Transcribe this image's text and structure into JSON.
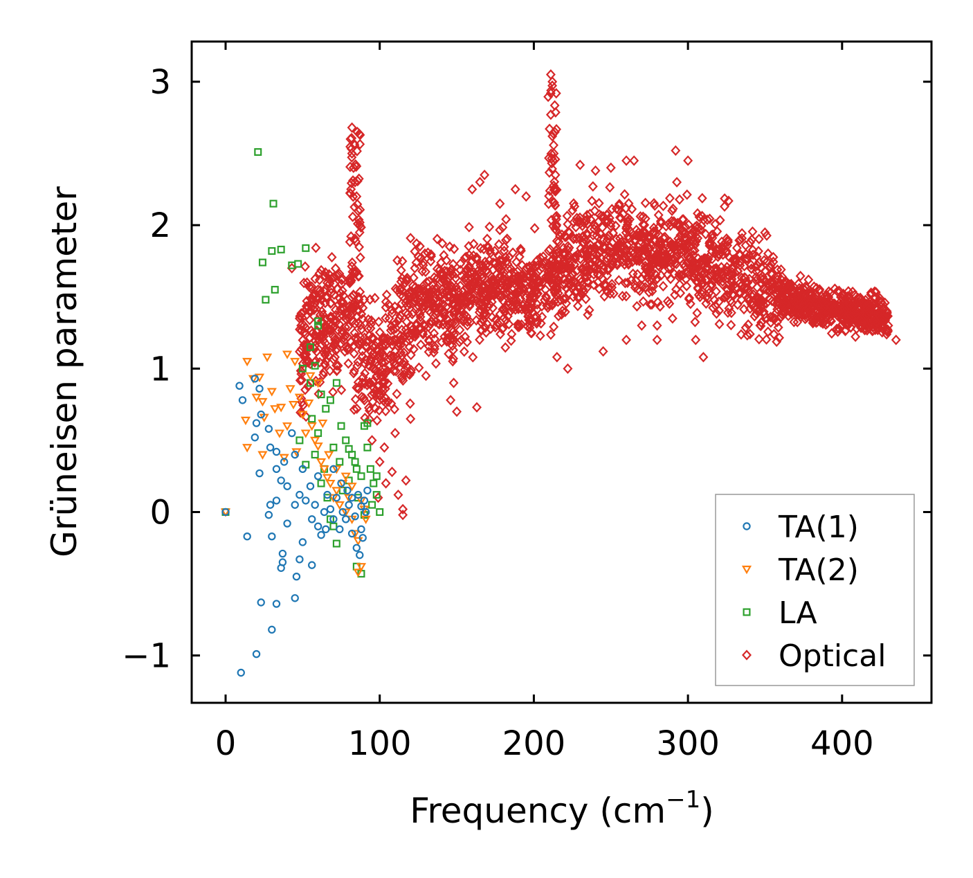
{
  "chart_data": {
    "type": "scatter",
    "title": "",
    "xlabel": "Frequency (cm",
    "xlabel_sup": "−1",
    "xlabel_end": ")",
    "ylabel": "Grüneisen parameter",
    "xlim": [
      -22,
      458
    ],
    "ylim": [
      -1.33,
      3.28
    ],
    "xticks": [
      0,
      100,
      200,
      300,
      400
    ],
    "yticks": [
      -1,
      0,
      1,
      2,
      3
    ],
    "xtick_labels": [
      "0",
      "100",
      "200",
      "300",
      "400"
    ],
    "ytick_labels": [
      "−1",
      "0",
      "1",
      "2",
      "3"
    ],
    "grid": false,
    "legend_position": "lower-right",
    "series": [
      {
        "name": "TA(1)",
        "marker": "circle",
        "color": "#1f77b4",
        "points": [
          [
            0,
            0
          ],
          [
            10,
            -1.12
          ],
          [
            20,
            -0.99
          ],
          [
            30,
            -0.82
          ],
          [
            23,
            -0.63
          ],
          [
            33,
            -0.64
          ],
          [
            45,
            -0.6
          ],
          [
            46,
            -0.45
          ],
          [
            14,
            -0.17
          ],
          [
            30,
            -0.17
          ],
          [
            37,
            -0.29
          ],
          [
            37,
            -0.35
          ],
          [
            36,
            -0.39
          ],
          [
            48,
            -0.33
          ],
          [
            56,
            -0.37
          ],
          [
            50,
            -0.21
          ],
          [
            9,
            0.88
          ],
          [
            19,
            0.93
          ],
          [
            11,
            0.78
          ],
          [
            22,
            0.86
          ],
          [
            20,
            0.62
          ],
          [
            23,
            0.68
          ],
          [
            19,
            0.52
          ],
          [
            28,
            0.58
          ],
          [
            29,
            0.45
          ],
          [
            33,
            0.42
          ],
          [
            33,
            0.3
          ],
          [
            22,
            0.27
          ],
          [
            38,
            0.35
          ],
          [
            36,
            0.22
          ],
          [
            40,
            0.18
          ],
          [
            29,
            0.05
          ],
          [
            33,
            0.08
          ],
          [
            28,
            -0.02
          ],
          [
            40,
            -0.08
          ],
          [
            45,
            0.05
          ],
          [
            43,
            0.55
          ],
          [
            45,
            0.4
          ],
          [
            50,
            0.3
          ],
          [
            48,
            0.12
          ],
          [
            55,
            0.18
          ],
          [
            58,
            0.05
          ],
          [
            60,
            -0.1
          ],
          [
            62,
            -0.16
          ],
          [
            65,
            -0.12
          ],
          [
            68,
            0.02
          ],
          [
            70,
            -0.05
          ],
          [
            72,
            0.1
          ],
          [
            74,
            -0.12
          ],
          [
            76,
            0.0
          ],
          [
            78,
            -0.05
          ],
          [
            80,
            0.05
          ],
          [
            82,
            0.1
          ],
          [
            84,
            -0.03
          ],
          [
            86,
            0.12
          ],
          [
            88,
            0.04
          ],
          [
            85,
            -0.25
          ],
          [
            87,
            -0.3
          ],
          [
            89,
            -0.18
          ],
          [
            90,
            0.08
          ],
          [
            92,
            0.15
          ],
          [
            70,
            0.3
          ],
          [
            60,
            0.25
          ],
          [
            75,
            0.2
          ],
          [
            82,
            -0.15
          ],
          [
            66,
            0.12
          ],
          [
            52,
            0.08
          ],
          [
            56,
            -0.05
          ],
          [
            64,
            0.0
          ],
          [
            88,
            -0.12
          ],
          [
            91,
            0.0
          ],
          [
            79,
            0.15
          ]
        ]
      },
      {
        "name": "TA(2)",
        "marker": "triangle-down",
        "color": "#ff7f0e",
        "points": [
          [
            0,
            0
          ],
          [
            14,
            1.05
          ],
          [
            27,
            1.08
          ],
          [
            40,
            1.1
          ],
          [
            45,
            1.05
          ],
          [
            18,
            0.93
          ],
          [
            22,
            0.94
          ],
          [
            20,
            0.8
          ],
          [
            24,
            0.77
          ],
          [
            13,
            0.64
          ],
          [
            25,
            0.66
          ],
          [
            14,
            0.45
          ],
          [
            24,
            0.4
          ],
          [
            35,
            0.55
          ],
          [
            30,
            0.84
          ],
          [
            32,
            0.72
          ],
          [
            36,
            0.73
          ],
          [
            40,
            0.6
          ],
          [
            42,
            0.86
          ],
          [
            44,
            0.75
          ],
          [
            48,
            0.8
          ],
          [
            50,
            0.68
          ],
          [
            54,
            0.76
          ],
          [
            56,
            0.6
          ],
          [
            58,
            0.5
          ],
          [
            60,
            0.46
          ],
          [
            62,
            0.35
          ],
          [
            64,
            0.3
          ],
          [
            66,
            0.24
          ],
          [
            68,
            0.2
          ],
          [
            70,
            0.1
          ],
          [
            72,
            0.15
          ],
          [
            74,
            0.05
          ],
          [
            76,
            0.2
          ],
          [
            78,
            0.25
          ],
          [
            80,
            0.1
          ],
          [
            82,
            -0.05
          ],
          [
            84,
            -0.15
          ],
          [
            86,
            -0.2
          ],
          [
            88,
            -0.38
          ],
          [
            86,
            -0.42
          ],
          [
            90,
            0.02
          ],
          [
            52,
            0.55
          ],
          [
            46,
            0.42
          ],
          [
            38,
            0.38
          ],
          [
            63,
            0.62
          ],
          [
            67,
            0.4
          ],
          [
            72,
            0.3
          ],
          [
            78,
            0.0
          ],
          [
            82,
            0.18
          ],
          [
            88,
            0.08
          ],
          [
            91,
            -0.05
          ],
          [
            60,
            0.9
          ],
          [
            55,
            0.95
          ]
        ]
      },
      {
        "name": "LA",
        "marker": "square",
        "color": "#2ca02c",
        "points": [
          [
            0,
            0
          ],
          [
            21,
            2.51
          ],
          [
            31,
            2.15
          ],
          [
            30,
            1.82
          ],
          [
            24,
            1.74
          ],
          [
            36,
            1.83
          ],
          [
            52,
            1.84
          ],
          [
            43,
            1.72
          ],
          [
            47,
            1.73
          ],
          [
            32,
            1.55
          ],
          [
            26,
            1.48
          ],
          [
            60,
            1.33
          ],
          [
            60,
            1.3
          ],
          [
            55,
            1.15
          ],
          [
            50,
            1.0
          ],
          [
            58,
            1.02
          ],
          [
            55,
            0.9
          ],
          [
            62,
            0.82
          ],
          [
            65,
            0.72
          ],
          [
            68,
            0.78
          ],
          [
            72,
            0.9
          ],
          [
            75,
            0.6
          ],
          [
            78,
            0.5
          ],
          [
            80,
            0.44
          ],
          [
            82,
            0.4
          ],
          [
            85,
            0.3
          ],
          [
            88,
            0.25
          ],
          [
            90,
            0.6
          ],
          [
            92,
            0.45
          ],
          [
            94,
            0.3
          ],
          [
            96,
            0.2
          ],
          [
            98,
            0.12
          ],
          [
            100,
            0.0
          ],
          [
            60,
            0.55
          ],
          [
            58,
            0.4
          ],
          [
            62,
            0.2
          ],
          [
            64,
            0.3
          ],
          [
            66,
            0.1
          ],
          [
            68,
            -0.05
          ],
          [
            70,
            -0.1
          ],
          [
            72,
            -0.22
          ],
          [
            85,
            -0.38
          ],
          [
            88,
            -0.43
          ],
          [
            76,
            0.15
          ],
          [
            80,
            0.22
          ],
          [
            84,
            0.35
          ],
          [
            92,
            0.62
          ],
          [
            95,
            0.05
          ],
          [
            56,
            0.65
          ],
          [
            48,
            0.5
          ],
          [
            52,
            0.33
          ],
          [
            70,
            0.45
          ],
          [
            74,
            0.35
          ],
          [
            86,
            0.1
          ],
          [
            90,
            -0.02
          ],
          [
            98,
            0.25
          ]
        ]
      },
      {
        "name": "Optical",
        "marker": "diamond",
        "color": "#d62728",
        "centerline": [
          [
            48,
            1.15
          ],
          [
            60,
            1.3
          ],
          [
            70,
            1.35
          ],
          [
            80,
            1.3
          ],
          [
            90,
            1.1
          ],
          [
            100,
            0.95
          ],
          [
            110,
            1.15
          ],
          [
            120,
            1.35
          ],
          [
            130,
            1.45
          ],
          [
            140,
            1.5
          ],
          [
            150,
            1.45
          ],
          [
            160,
            1.5
          ],
          [
            170,
            1.6
          ],
          [
            180,
            1.6
          ],
          [
            190,
            1.55
          ],
          [
            200,
            1.55
          ],
          [
            210,
            1.6
          ],
          [
            220,
            1.7
          ],
          [
            230,
            1.75
          ],
          [
            240,
            1.8
          ],
          [
            250,
            1.85
          ],
          [
            260,
            1.85
          ],
          [
            270,
            1.8
          ],
          [
            280,
            1.8
          ],
          [
            290,
            1.85
          ],
          [
            300,
            1.8
          ],
          [
            310,
            1.7
          ],
          [
            320,
            1.7
          ],
          [
            330,
            1.7
          ],
          [
            340,
            1.62
          ],
          [
            350,
            1.55
          ],
          [
            360,
            1.5
          ],
          [
            370,
            1.48
          ],
          [
            380,
            1.45
          ],
          [
            390,
            1.42
          ],
          [
            400,
            1.42
          ],
          [
            410,
            1.4
          ],
          [
            420,
            1.38
          ],
          [
            430,
            1.33
          ]
        ],
        "peaks": [
          [
            82,
            2.68
          ],
          [
            81,
            2.6
          ],
          [
            82,
            2.5
          ],
          [
            83,
            2.4
          ],
          [
            84,
            2.3
          ],
          [
            85,
            2.2
          ],
          [
            86,
            2.1
          ],
          [
            87,
            2.0
          ],
          [
            211,
            3.05
          ],
          [
            212,
            3.0
          ],
          [
            211,
            2.92
          ],
          [
            211,
            2.77
          ],
          [
            212,
            2.62
          ],
          [
            213,
            2.5
          ],
          [
            214,
            2.35
          ],
          [
            292,
            2.52
          ],
          [
            300,
            2.45
          ],
          [
            260,
            2.45
          ],
          [
            265,
            2.45
          ],
          [
            250,
            2.4
          ],
          [
            230,
            2.42
          ],
          [
            240,
            2.38
          ],
          [
            168,
            2.35
          ],
          [
            165,
            2.3
          ],
          [
            160,
            2.25
          ],
          [
            188,
            2.25
          ],
          [
            195,
            2.2
          ],
          [
            178,
            2.15
          ],
          [
            99,
            0.1
          ],
          [
            104,
            0.2
          ],
          [
            108,
            0.28
          ],
          [
            112,
            0.12
          ],
          [
            115,
            0.02
          ],
          [
            115,
            -0.02
          ],
          [
            117,
            0.22
          ],
          [
            100,
            0.35
          ],
          [
            95,
            0.5
          ],
          [
            103,
            0.45
          ],
          [
            43,
            1.7
          ],
          [
            48,
            1.35
          ],
          [
            49,
            1.3
          ],
          [
            55,
            1.45
          ],
          [
            60,
            1.55
          ],
          [
            146,
            0.78
          ],
          [
            150,
            0.7
          ],
          [
            163,
            0.73
          ],
          [
            148,
            0.9
          ],
          [
            130,
            0.95
          ],
          [
            120,
            0.65
          ],
          [
            110,
            0.55
          ],
          [
            222,
            1.0
          ],
          [
            215,
            1.08
          ],
          [
            245,
            1.12
          ],
          [
            260,
            1.2
          ],
          [
            270,
            1.3
          ],
          [
            280,
            1.2
          ],
          [
            310,
            1.08
          ],
          [
            305,
            1.2
          ],
          [
            280,
            1.3
          ],
          [
            290,
            1.35
          ],
          [
            435,
            1.2
          ],
          [
            430,
            1.3
          ],
          [
            425,
            1.35
          ]
        ]
      }
    ]
  }
}
